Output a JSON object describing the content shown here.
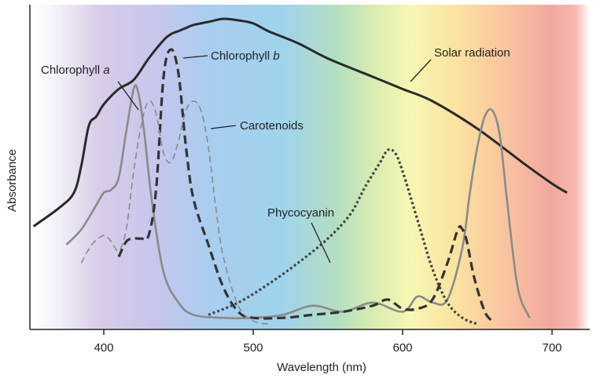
{
  "chart_data": {
    "type": "line",
    "xlabel": "Wavelength (nm)",
    "ylabel": "Absorbance",
    "x_ticks": [
      400,
      500,
      600,
      700
    ],
    "xlim": [
      350,
      712
    ],
    "ylim": [
      0,
      1
    ],
    "grid": false,
    "legend": "none (curves labeled directly)",
    "background": "visible light spectrum gradient",
    "series": [
      {
        "name": "Solar radiation",
        "label_prefix": "Solar radiation",
        "label_italic": "",
        "color": "#2a2a2a",
        "style": "solid",
        "x": [
          353,
          370,
          380,
          385,
          390,
          395,
          400,
          410,
          420,
          430,
          440,
          445,
          450,
          455,
          460,
          470,
          480,
          490,
          500,
          510,
          530,
          550,
          580,
          600,
          620,
          650,
          680,
          700,
          710
        ],
        "y": [
          0.32,
          0.38,
          0.43,
          0.52,
          0.65,
          0.68,
          0.72,
          0.77,
          0.8,
          0.87,
          0.93,
          0.95,
          0.96,
          0.97,
          0.98,
          0.99,
          1.0,
          0.995,
          0.985,
          0.96,
          0.92,
          0.87,
          0.81,
          0.77,
          0.73,
          0.64,
          0.53,
          0.46,
          0.43
        ]
      },
      {
        "name": "Chlorophyll a",
        "label_prefix": "Chlorophyll ",
        "label_italic": "a",
        "color": "#8a8a8a",
        "style": "solid",
        "x": [
          375,
          385,
          395,
          400,
          405,
          410,
          415,
          420,
          423,
          427,
          432,
          440,
          450,
          460,
          480,
          500,
          520,
          540,
          560,
          580,
          600,
          610,
          620,
          630,
          640,
          645,
          650,
          655,
          660,
          665,
          670,
          677,
          685
        ],
        "y": [
          0.26,
          0.31,
          0.39,
          0.43,
          0.44,
          0.48,
          0.63,
          0.77,
          0.76,
          0.63,
          0.41,
          0.17,
          0.07,
          0.03,
          0.02,
          0.02,
          0.03,
          0.06,
          0.04,
          0.07,
          0.04,
          0.09,
          0.07,
          0.08,
          0.25,
          0.43,
          0.58,
          0.68,
          0.7,
          0.62,
          0.4,
          0.12,
          0.02
        ]
      },
      {
        "name": "Chlorophyll b",
        "label_prefix": "Chlorophyll ",
        "label_italic": "b",
        "color": "#333333",
        "style": "dashed-bold",
        "x": [
          410,
          415,
          420,
          425,
          430,
          435,
          440,
          445,
          450,
          455,
          460,
          470,
          480,
          490,
          500,
          520,
          540,
          560,
          580,
          590,
          600,
          610,
          620,
          630,
          637,
          640,
          643,
          648,
          655,
          660
        ],
        "y": [
          0.22,
          0.27,
          0.28,
          0.28,
          0.29,
          0.44,
          0.81,
          0.9,
          0.82,
          0.58,
          0.41,
          0.26,
          0.12,
          0.04,
          0.02,
          0.02,
          0.03,
          0.04,
          0.06,
          0.08,
          0.05,
          0.05,
          0.08,
          0.2,
          0.31,
          0.31,
          0.27,
          0.15,
          0.04,
          0.01
        ]
      },
      {
        "name": "Carotenoids",
        "label_prefix": "Carotenoids",
        "label_italic": "",
        "color": "#8a8a8a",
        "style": "dashed-thin",
        "x": [
          385,
          392,
          400,
          405,
          410,
          415,
          420,
          425,
          430,
          435,
          440,
          445,
          450,
          455,
          460,
          465,
          470,
          475,
          480,
          490,
          500,
          510
        ],
        "y": [
          0.2,
          0.26,
          0.29,
          0.27,
          0.24,
          0.31,
          0.5,
          0.65,
          0.73,
          0.69,
          0.56,
          0.53,
          0.6,
          0.7,
          0.73,
          0.7,
          0.58,
          0.38,
          0.22,
          0.06,
          0.01,
          0.0
        ]
      },
      {
        "name": "Phycocyanin",
        "label_prefix": "Phycocyanin",
        "label_italic": "",
        "color": "#444444",
        "style": "dotted",
        "x": [
          470,
          490,
          510,
          530,
          550,
          565,
          575,
          585,
          590,
          595,
          600,
          610,
          620,
          630,
          640,
          650
        ],
        "y": [
          0.03,
          0.07,
          0.13,
          0.2,
          0.28,
          0.36,
          0.45,
          0.53,
          0.57,
          0.56,
          0.5,
          0.34,
          0.18,
          0.07,
          0.02,
          0.0
        ]
      }
    ]
  }
}
